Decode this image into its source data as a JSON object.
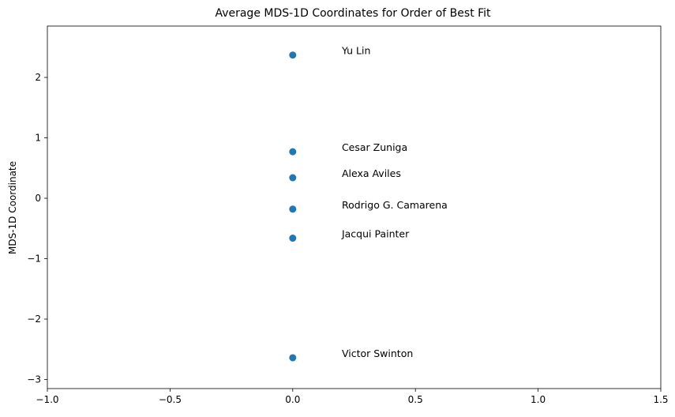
{
  "chart_data": {
    "type": "scatter",
    "title": "Average MDS-1D Coordinates for Order of Best Fit",
    "xlabel": "",
    "ylabel": "MDS-1D Coordinate",
    "xlim": [
      -1.0,
      1.5
    ],
    "ylim": [
      -3.15,
      2.85
    ],
    "grid": false,
    "x_ticks": [
      -1.0,
      -0.5,
      0.0,
      0.5,
      1.0,
      1.5
    ],
    "x_tick_labels": [
      "−1.0",
      "−0.5",
      "0.0",
      "0.5",
      "1.0",
      "1.5"
    ],
    "y_ticks": [
      -3,
      -2,
      -1,
      0,
      1,
      2
    ],
    "y_tick_labels": [
      "−3",
      "−2",
      "−1",
      "0",
      "1",
      "2"
    ],
    "marker_color": "#1f77b4",
    "label_x_offset": 0.2,
    "points": [
      {
        "label": "Yu Lin",
        "x": 0.0,
        "y": 2.37
      },
      {
        "label": "Cesar Zuniga",
        "x": 0.0,
        "y": 0.77
      },
      {
        "label": "Alexa Aviles",
        "x": 0.0,
        "y": 0.34
      },
      {
        "label": "Rodrigo G. Camarena",
        "x": 0.0,
        "y": -0.18
      },
      {
        "label": "Jacqui Painter",
        "x": 0.0,
        "y": -0.66
      },
      {
        "label": "Victor Swinton",
        "x": 0.0,
        "y": -2.64
      }
    ]
  }
}
